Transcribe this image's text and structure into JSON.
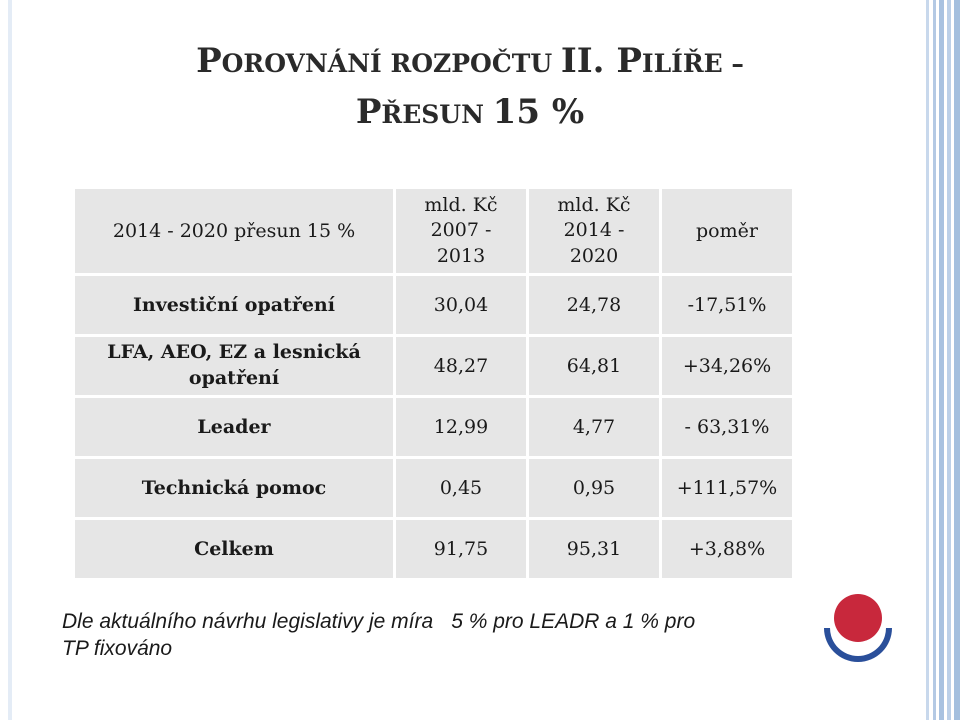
{
  "title": {
    "line1_p": "P",
    "line1_rest": "OROVNÁNÍ ROZPOČTU ",
    "line1_roman": "II. ",
    "line1_p2": "P",
    "line1_rest2": "ILÍŘE –",
    "line2_p": "P",
    "line2_rest": "ŘESUN ",
    "line2_pct": "15 %"
  },
  "table": {
    "header": {
      "label": "2014 - 2020 přesun 15 %",
      "col_a": [
        "mld. Kč",
        "2007 -",
        "2013"
      ],
      "col_b": [
        "mld. Kč",
        "2014 -",
        "2020"
      ],
      "col_c": "poměr"
    },
    "rows": [
      {
        "label": "Investiční opatření",
        "a": "30,04",
        "b": "24,78",
        "c": "-17,51%"
      },
      {
        "label_lines": [
          "LFA, AEO, EZ a lesnická",
          "opatření"
        ],
        "a": "48,27",
        "b": "64,81",
        "c": "+34,26%"
      },
      {
        "label": "Leader",
        "a": "12,99",
        "b": "4,77",
        "c": "- 63,31%"
      },
      {
        "label": "Technická pomoc",
        "a": "0,45",
        "b": "0,95",
        "c": "+111,57%"
      },
      {
        "label": "Celkem",
        "a": "91,75",
        "b": "95,31",
        "c": "+3,88%"
      }
    ]
  },
  "note": {
    "part1": "Dle aktuálního návrhu legislativy je míra",
    "part2": "5 % pro LEADR a 1 % pro",
    "part3": "TP fixováno"
  },
  "colors": {
    "cell_bg": "#e6e6e6",
    "logo_red": "#c8283c",
    "logo_blue": "#2a4f9a",
    "stripe_blue": "#b9cde6"
  }
}
